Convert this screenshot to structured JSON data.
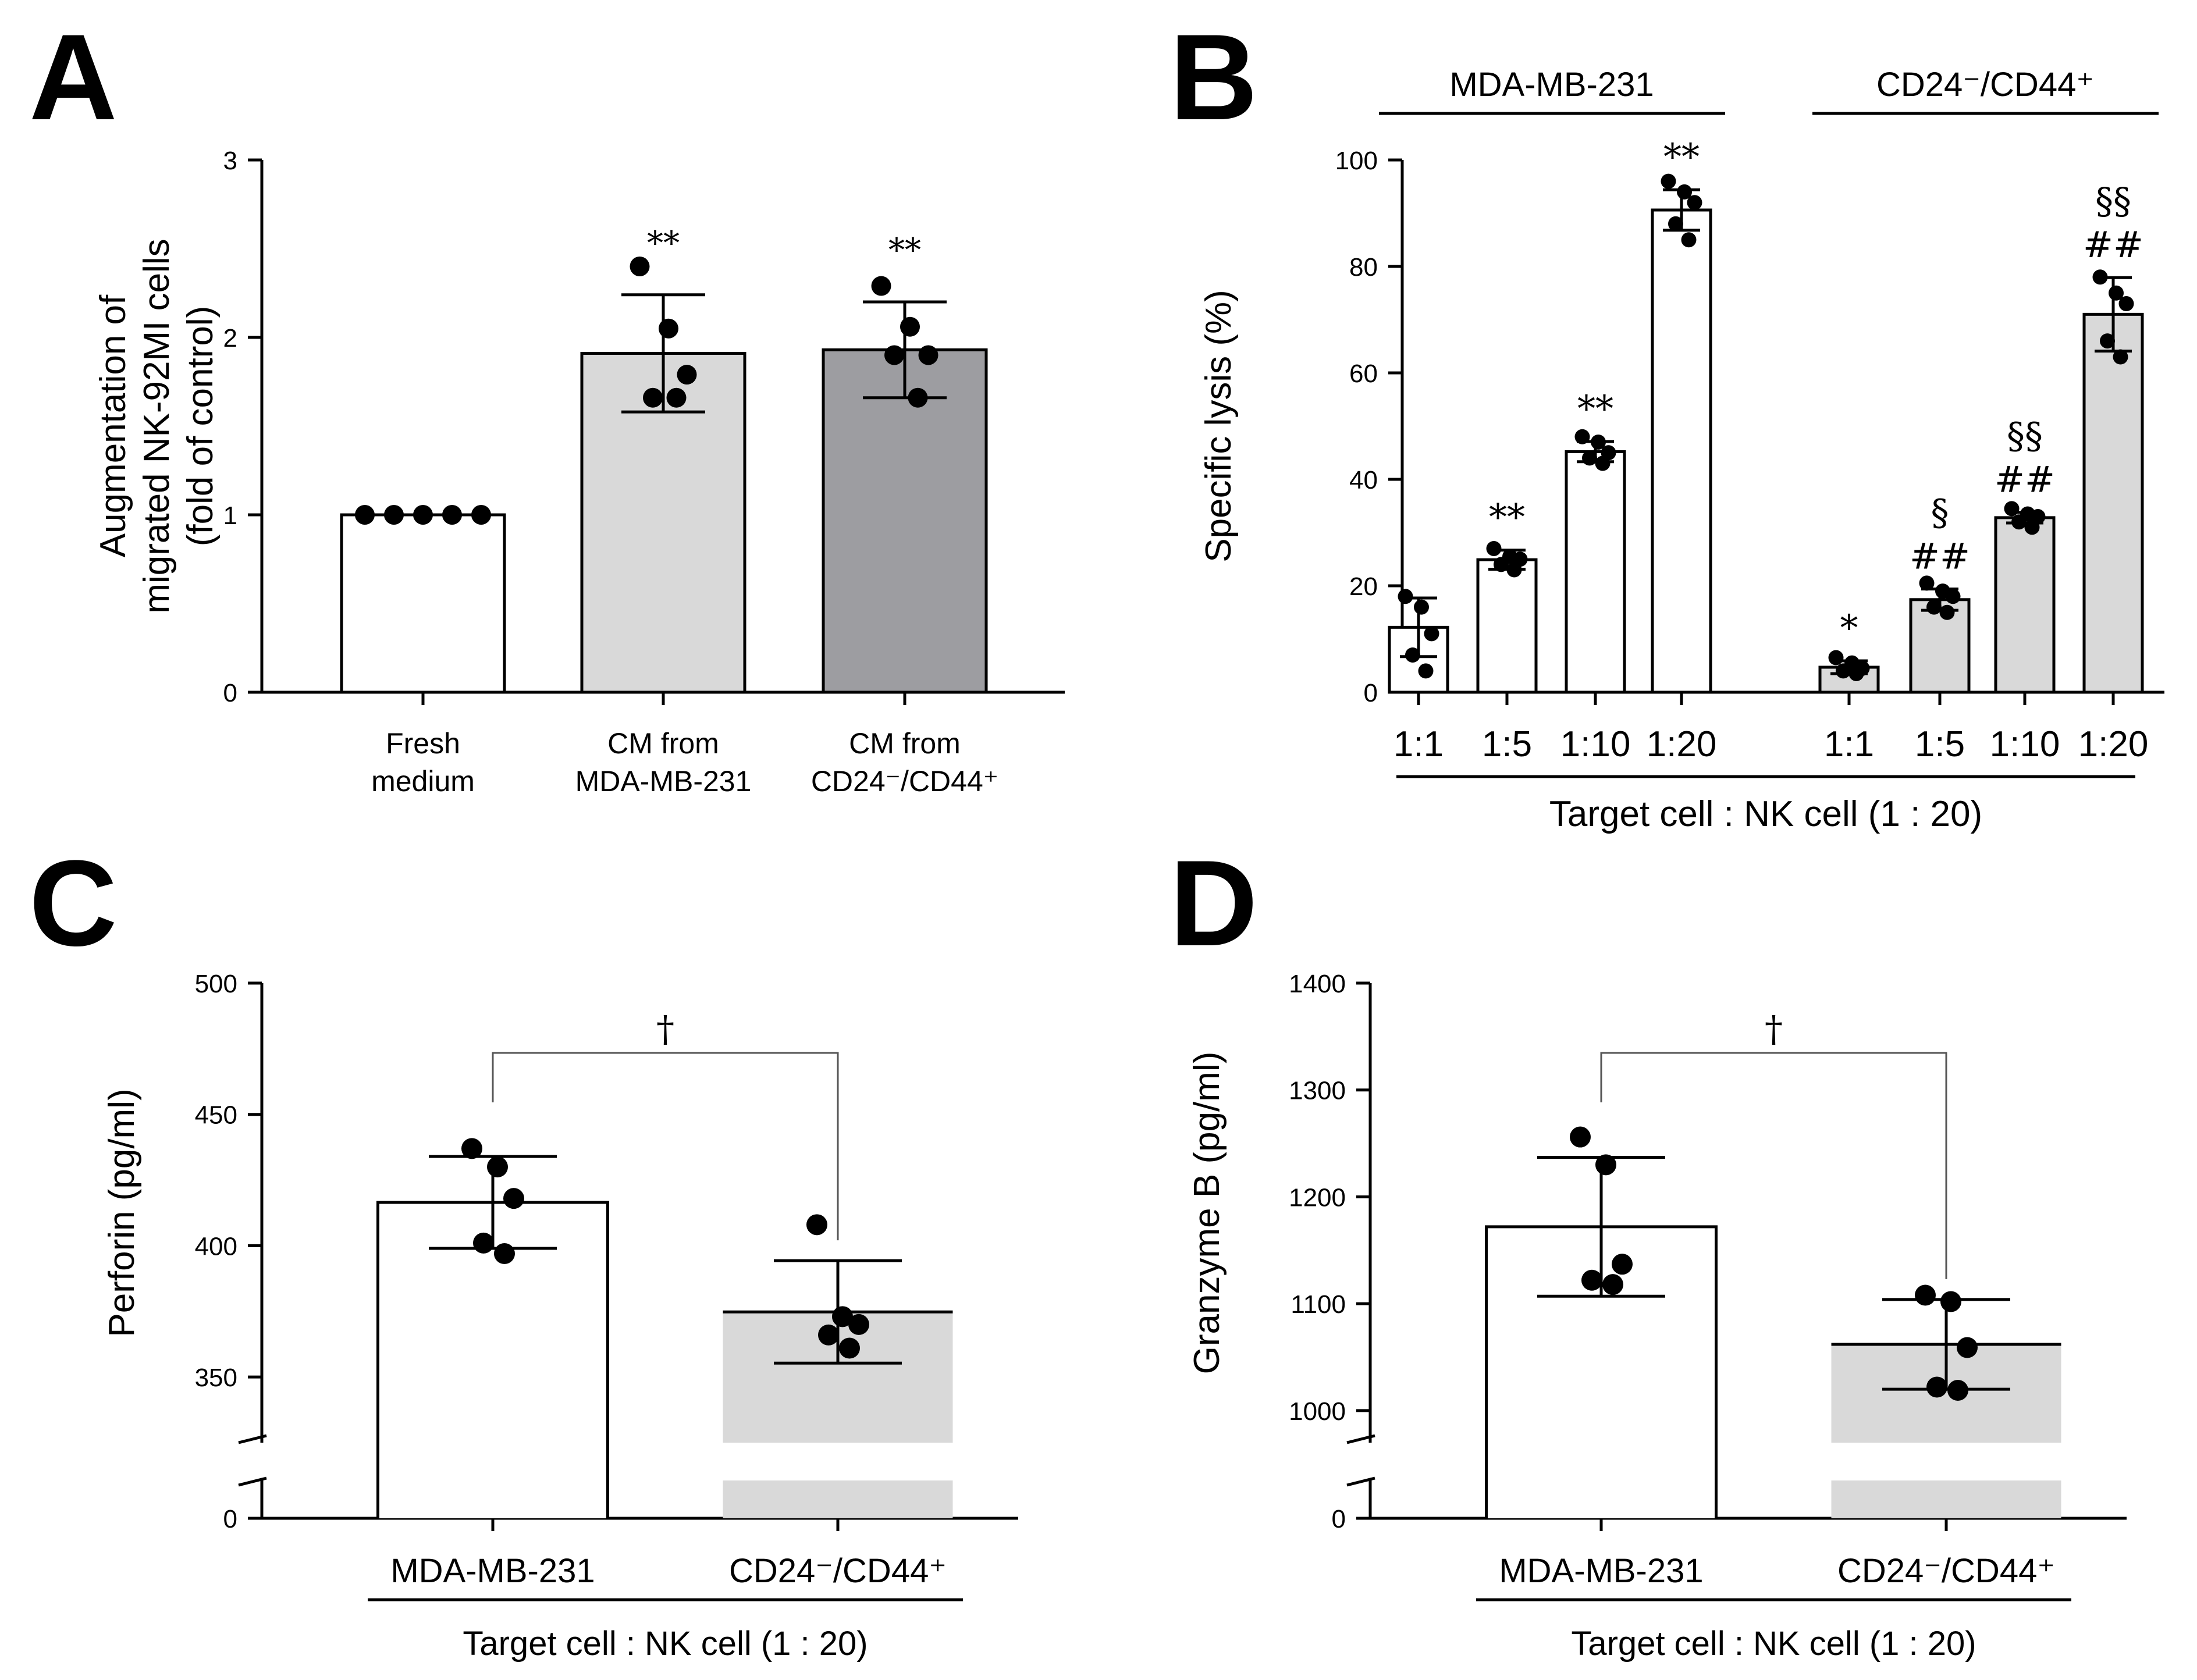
{
  "colors": {
    "white": "#ffffff",
    "light_gray": "#d9d9d9",
    "dark_gray": "#9d9da1",
    "bar_gray_cd": "#d9d9d9"
  },
  "chart_data": [
    {
      "panel": "A",
      "type": "bar",
      "ylabel": [
        "Augmentation of",
        "migrated NK-92MI cells",
        "(fold of control)"
      ],
      "ylim": [
        0,
        3
      ],
      "yticks": [
        0,
        1,
        2,
        3
      ],
      "categories": [
        {
          "lines": [
            "Fresh",
            "medium"
          ]
        },
        {
          "lines": [
            "CM from",
            "MDA-MB-231"
          ]
        },
        {
          "lines": [
            "CM from",
            "CD24⁻/CD44⁺"
          ]
        }
      ],
      "values": [
        1.0,
        1.91,
        1.93
      ],
      "errors": [
        0.0,
        0.33,
        0.27
      ],
      "colors": [
        "#ffffff",
        "#d9d9d9",
        "#9d9da1"
      ],
      "points": [
        [
          1,
          1,
          1,
          1,
          1
        ],
        [
          2.4,
          2.05,
          1.79,
          1.66,
          1.66
        ],
        [
          2.29,
          2.06,
          1.9,
          1.9,
          1.66
        ]
      ],
      "annotations": [
        "",
        "**",
        "**"
      ]
    },
    {
      "panel": "B",
      "type": "bar",
      "ylabel": "Specific lysis (%)",
      "ylim": [
        0,
        100
      ],
      "yticks": [
        0,
        20,
        40,
        60,
        80,
        100
      ],
      "groups": [
        "MDA-MB-231",
        "CD24⁻/CD44⁺"
      ],
      "categories": [
        "1:1",
        "1:5",
        "1:10",
        "1:20",
        "1:1",
        "1:5",
        "1:10",
        "1:20"
      ],
      "values": [
        12.2,
        24.9,
        45.2,
        90.6,
        4.7,
        17.4,
        32.8,
        71.0
      ],
      "errors": [
        5.5,
        1.8,
        1.9,
        3.8,
        1.2,
        2.0,
        1.0,
        6.9
      ],
      "colors": [
        "#ffffff",
        "#ffffff",
        "#ffffff",
        "#ffffff",
        "#d9d9d9",
        "#d9d9d9",
        "#d9d9d9",
        "#d9d9d9"
      ],
      "points": [
        [
          18,
          16,
          11,
          7,
          4
        ],
        [
          27,
          25.5,
          25,
          24,
          23
        ],
        [
          48,
          47,
          45,
          44,
          43
        ],
        [
          96,
          94,
          92,
          88,
          85
        ],
        [
          6.5,
          5.5,
          4.5,
          4,
          3.5
        ],
        [
          20.5,
          19,
          18,
          16,
          15
        ],
        [
          34.5,
          33.5,
          33,
          32,
          31
        ],
        [
          78,
          75,
          73,
          66,
          63
        ]
      ],
      "annotations": [
        [
          ""
        ],
        [
          "**"
        ],
        [
          "**"
        ],
        [
          "**"
        ],
        [
          "*"
        ],
        [
          "##",
          "§"
        ],
        [
          "##",
          "§§"
        ],
        [
          "##",
          "§§"
        ]
      ],
      "xlabel": "Target cell : NK cell (1 : 20)"
    },
    {
      "panel": "C",
      "type": "bar",
      "ylabel": "Perforin (pg/ml)",
      "axis_break": true,
      "yticks": [
        0,
        350,
        400,
        450,
        500
      ],
      "ylim": [
        325,
        500
      ],
      "categories": [
        "MDA-MB-231",
        "CD24⁻/CD44⁺"
      ],
      "values": [
        416.5,
        374.8
      ],
      "errors": [
        17.5,
        19.5
      ],
      "colors": [
        "#ffffff",
        "#d9d9d9"
      ],
      "points": [
        [
          437,
          430,
          418,
          401,
          397
        ],
        [
          408,
          373,
          370,
          366,
          361
        ]
      ],
      "significance": "†",
      "xlabel": "Target cell : NK cell (1 : 20)"
    },
    {
      "panel": "D",
      "type": "bar",
      "ylabel": "Granzyme B (pg/ml)",
      "axis_break": true,
      "yticks": [
        0,
        1000,
        1100,
        1200,
        1300,
        1400
      ],
      "ylim": [
        970,
        1400
      ],
      "categories": [
        "MDA-MB-231",
        "CD24⁻/CD44⁺"
      ],
      "values": [
        1172,
        1062
      ],
      "errors": [
        65,
        42
      ],
      "colors": [
        "#ffffff",
        "#d9d9d9"
      ],
      "points": [
        [
          1256,
          1230,
          1137,
          1122,
          1118
        ],
        [
          1108,
          1102,
          1059,
          1022,
          1019
        ]
      ],
      "significance": "†",
      "xlabel": "Target cell : NK cell (1 : 20)"
    }
  ]
}
